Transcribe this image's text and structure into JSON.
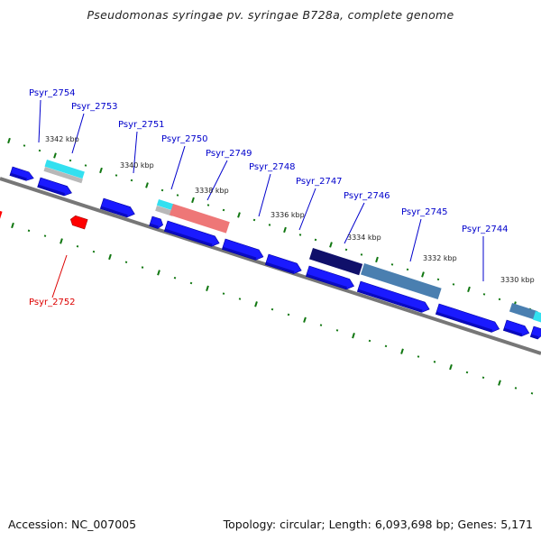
{
  "title": "Pseudomonas syringae pv. syringae B728a, complete genome",
  "footer": {
    "accession": "Accession: NC_007005",
    "summary": "Topology: circular; Length: 6,093,698 bp; Genes: 5,171"
  },
  "colors": {
    "forward_gene": "#1a1aff",
    "reverse_gene": "#ff0000",
    "label_forward": "#0000cc",
    "label_reverse": "#dd0000",
    "backbone": "#777777",
    "ticks": "#117711",
    "highlight_cyan": "#33e0f0",
    "highlight_pink": "#ee7777",
    "highlight_navy": "#10106a",
    "highlight_steel": "#4a7fb0",
    "highlight_gray": "#b8b8b8"
  },
  "kbp_labels": [
    "3342 kbp",
    "3340 kbp",
    "3338 kbp",
    "3336 kbp",
    "3334 kbp",
    "3332 kbp",
    "3330 kbp"
  ],
  "gene_labels": [
    {
      "name": "Psyr_2754",
      "strand": "forward"
    },
    {
      "name": "Psyr_2753",
      "strand": "forward"
    },
    {
      "name": "Psyr_2751",
      "strand": "forward"
    },
    {
      "name": "Psyr_2750",
      "strand": "forward"
    },
    {
      "name": "Psyr_2749",
      "strand": "forward"
    },
    {
      "name": "Psyr_2748",
      "strand": "forward"
    },
    {
      "name": "Psyr_2747",
      "strand": "forward"
    },
    {
      "name": "Psyr_2746",
      "strand": "forward"
    },
    {
      "name": "Psyr_2745",
      "strand": "forward"
    },
    {
      "name": "Psyr_2744",
      "strand": "forward"
    },
    {
      "name": "Psyr_2752",
      "strand": "reverse"
    }
  ]
}
